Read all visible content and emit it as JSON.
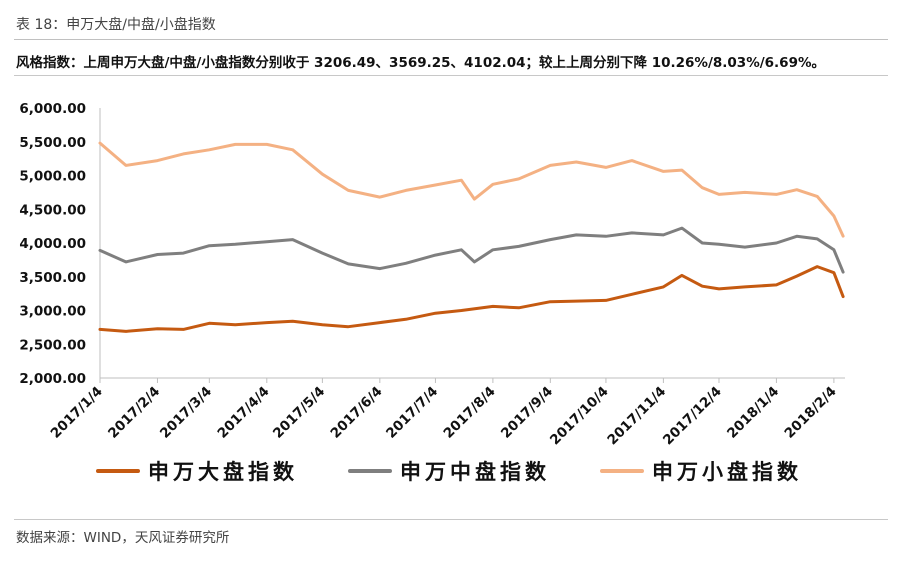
{
  "header": {
    "title": "表 18：申万大盘/中盘/小盘指数",
    "summary": "风格指数：上周申万大盘/中盘/小盘指数分别收于 3206.49、3569.25、4102.04；较上上周分别下降 10.26%/8.03%/6.69%。"
  },
  "footer": {
    "source": "数据来源：WIND，天风证券研究所"
  },
  "chart_data": {
    "type": "line",
    "title": "",
    "xlabel": "",
    "ylabel": "",
    "ylim": [
      2000,
      6000
    ],
    "y_ticks": [
      "2,000.00",
      "2,500.00",
      "3,000.00",
      "3,500.00",
      "4,000.00",
      "4,500.00",
      "5,000.00",
      "5,500.00",
      "6,000.00"
    ],
    "x_ticks": [
      "2017/1/4",
      "2017/2/4",
      "2017/3/4",
      "2017/4/4",
      "2017/5/4",
      "2017/6/4",
      "2017/7/4",
      "2017/8/4",
      "2017/9/4",
      "2017/10/4",
      "2017/11/4",
      "2017/12/4",
      "2018/1/4",
      "2018/2/4"
    ],
    "grid": false,
    "legend_position": "bottom",
    "series": [
      {
        "name": "申万大盘指数",
        "color": "#C55A11",
        "points": [
          [
            "2017/1/4",
            2720
          ],
          [
            "2017/1/18",
            2690
          ],
          [
            "2017/2/4",
            2730
          ],
          [
            "2017/2/18",
            2720
          ],
          [
            "2017/3/4",
            2810
          ],
          [
            "2017/3/18",
            2790
          ],
          [
            "2017/4/4",
            2820
          ],
          [
            "2017/4/18",
            2840
          ],
          [
            "2017/5/4",
            2790
          ],
          [
            "2017/5/18",
            2760
          ],
          [
            "2017/6/4",
            2820
          ],
          [
            "2017/6/18",
            2870
          ],
          [
            "2017/7/4",
            2960
          ],
          [
            "2017/7/18",
            3000
          ],
          [
            "2017/8/4",
            3060
          ],
          [
            "2017/8/18",
            3040
          ],
          [
            "2017/9/4",
            3130
          ],
          [
            "2017/9/18",
            3140
          ],
          [
            "2017/10/4",
            3150
          ],
          [
            "2017/10/18",
            3240
          ],
          [
            "2017/11/4",
            3350
          ],
          [
            "2017/11/14",
            3520
          ],
          [
            "2017/11/25",
            3360
          ],
          [
            "2017/12/4",
            3320
          ],
          [
            "2017/12/18",
            3350
          ],
          [
            "2018/1/4",
            3380
          ],
          [
            "2018/1/15",
            3510
          ],
          [
            "2018/1/26",
            3650
          ],
          [
            "2018/2/4",
            3560
          ],
          [
            "2018/2/9",
            3206.49
          ]
        ]
      },
      {
        "name": "申万中盘指数",
        "color": "#7F7F7F",
        "points": [
          [
            "2017/1/4",
            3890
          ],
          [
            "2017/1/18",
            3720
          ],
          [
            "2017/2/4",
            3830
          ],
          [
            "2017/2/18",
            3850
          ],
          [
            "2017/3/4",
            3960
          ],
          [
            "2017/3/18",
            3980
          ],
          [
            "2017/4/4",
            4020
          ],
          [
            "2017/4/18",
            4050
          ],
          [
            "2017/5/4",
            3850
          ],
          [
            "2017/5/18",
            3690
          ],
          [
            "2017/6/4",
            3620
          ],
          [
            "2017/6/18",
            3700
          ],
          [
            "2017/7/4",
            3820
          ],
          [
            "2017/7/18",
            3900
          ],
          [
            "2017/7/25",
            3720
          ],
          [
            "2017/8/4",
            3900
          ],
          [
            "2017/8/18",
            3950
          ],
          [
            "2017/9/4",
            4050
          ],
          [
            "2017/9/18",
            4120
          ],
          [
            "2017/10/4",
            4100
          ],
          [
            "2017/10/18",
            4150
          ],
          [
            "2017/11/4",
            4120
          ],
          [
            "2017/11/14",
            4220
          ],
          [
            "2017/11/25",
            4000
          ],
          [
            "2017/12/4",
            3980
          ],
          [
            "2017/12/18",
            3940
          ],
          [
            "2018/1/4",
            4000
          ],
          [
            "2018/1/15",
            4100
          ],
          [
            "2018/1/26",
            4060
          ],
          [
            "2018/2/4",
            3900
          ],
          [
            "2018/2/9",
            3569.25
          ]
        ]
      },
      {
        "name": "申万小盘指数",
        "color": "#F4B183",
        "points": [
          [
            "2017/1/4",
            5480
          ],
          [
            "2017/1/18",
            5150
          ],
          [
            "2017/2/4",
            5220
          ],
          [
            "2017/2/18",
            5320
          ],
          [
            "2017/3/4",
            5380
          ],
          [
            "2017/3/18",
            5460
          ],
          [
            "2017/4/4",
            5460
          ],
          [
            "2017/4/18",
            5380
          ],
          [
            "2017/5/4",
            5020
          ],
          [
            "2017/5/18",
            4780
          ],
          [
            "2017/6/4",
            4680
          ],
          [
            "2017/6/18",
            4780
          ],
          [
            "2017/7/4",
            4860
          ],
          [
            "2017/7/18",
            4930
          ],
          [
            "2017/7/25",
            4650
          ],
          [
            "2017/8/4",
            4870
          ],
          [
            "2017/8/18",
            4950
          ],
          [
            "2017/9/4",
            5150
          ],
          [
            "2017/9/18",
            5200
          ],
          [
            "2017/10/4",
            5120
          ],
          [
            "2017/10/18",
            5220
          ],
          [
            "2017/11/4",
            5060
          ],
          [
            "2017/11/14",
            5080
          ],
          [
            "2017/11/25",
            4820
          ],
          [
            "2017/12/4",
            4720
          ],
          [
            "2017/12/18",
            4750
          ],
          [
            "2018/1/4",
            4720
          ],
          [
            "2018/1/15",
            4790
          ],
          [
            "2018/1/26",
            4690
          ],
          [
            "2018/2/4",
            4400
          ],
          [
            "2018/2/9",
            4102.04
          ]
        ]
      }
    ]
  }
}
